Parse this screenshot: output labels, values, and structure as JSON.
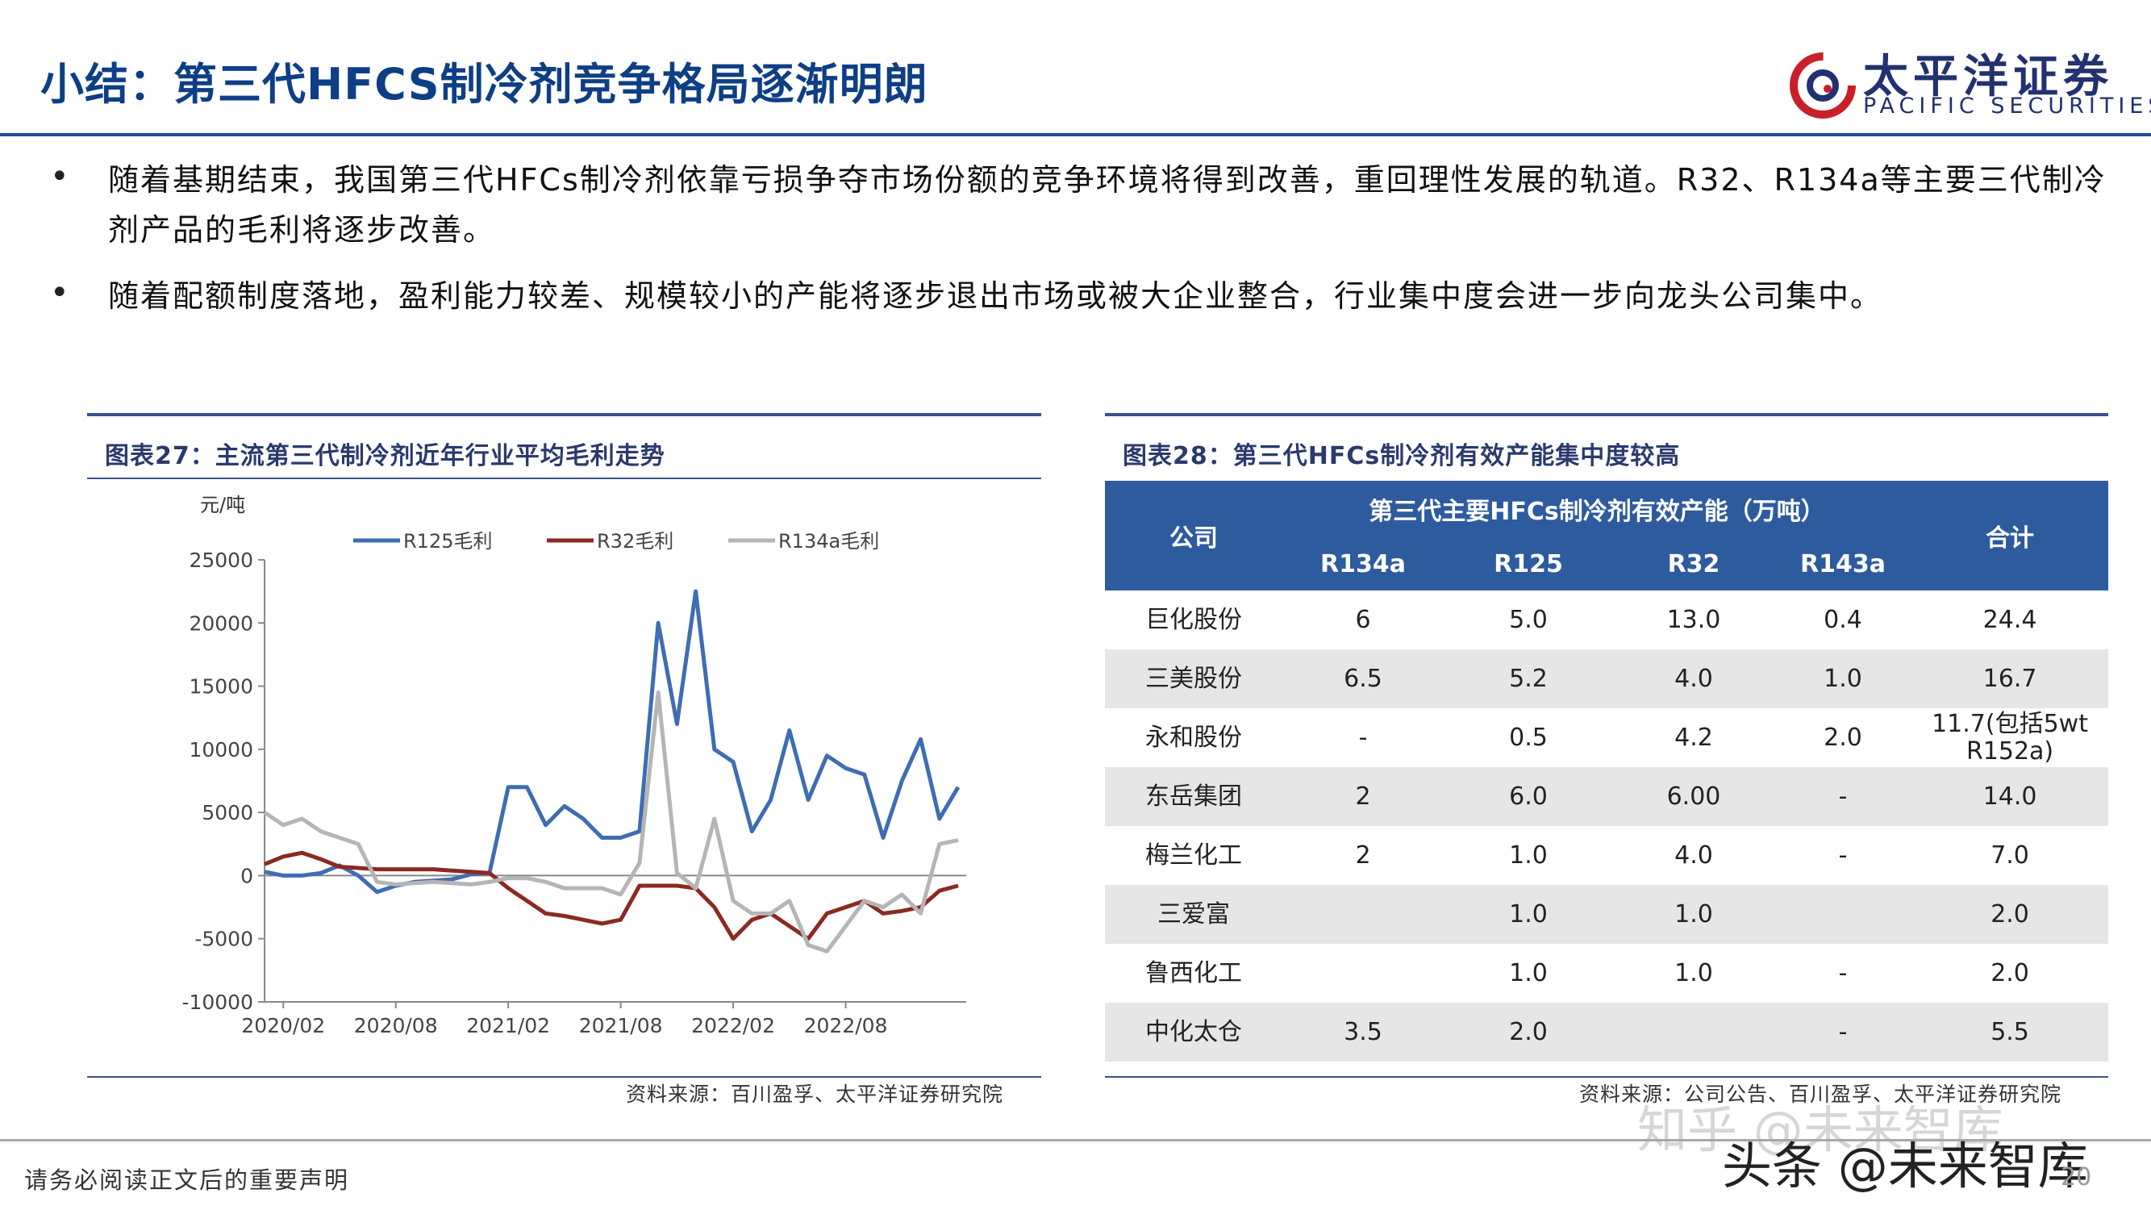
{
  "header": {
    "title": "小结：第三代HFCS制冷剂竞争格局逐渐明朗",
    "logo_name": "太平洋证券",
    "logo_en": "PACIFIC SECURITIES"
  },
  "bullets": [
    "随着基期结束，我国第三代HFCs制冷剂依靠亏损争夺市场份额的竞争环境将得到改善，重回理性发展的轨道。R32、R134a等主要三代制冷剂产品的毛利将逐步改善。",
    "随着配额制度落地，盈利能力较差、规模较小的产能将逐步退出市场或被大企业整合，行业集中度会进一步向龙头公司集中。"
  ],
  "bullet_mark": "•",
  "left_panel": {
    "title": "图表27：主流第三代制冷剂近年行业平均毛利走势",
    "source": "资料来源：百川盈孚、太平洋证券研究院"
  },
  "chart_data": {
    "type": "line",
    "ylabel": "元/吨",
    "ylim": [
      -10000,
      25000
    ],
    "yticks": [
      25000,
      20000,
      15000,
      10000,
      5000,
      0,
      -5000,
      -10000
    ],
    "xlim": [
      "2020-01",
      "2023-02"
    ],
    "xticks": [
      "2020/02",
      "2020/08",
      "2021/02",
      "2021/08",
      "2022/02",
      "2022/08"
    ],
    "legend_position": "top",
    "series": [
      {
        "name": "R125毛利",
        "color": "#3f6db3",
        "points": [
          [
            "2020-01",
            300
          ],
          [
            "2020-02",
            0
          ],
          [
            "2020-03",
            0
          ],
          [
            "2020-04",
            200
          ],
          [
            "2020-05",
            800
          ],
          [
            "2020-06",
            0
          ],
          [
            "2020-07",
            -1300
          ],
          [
            "2020-08",
            -800
          ],
          [
            "2020-09",
            -500
          ],
          [
            "2020-10",
            -400
          ],
          [
            "2020-11",
            -300
          ],
          [
            "2020-12",
            100
          ],
          [
            "2021-01",
            200
          ],
          [
            "2021-02",
            7000
          ],
          [
            "2021-03",
            7000
          ],
          [
            "2021-04",
            4000
          ],
          [
            "2021-05",
            5500
          ],
          [
            "2021-06",
            4500
          ],
          [
            "2021-07",
            3000
          ],
          [
            "2021-08",
            3000
          ],
          [
            "2021-09",
            3500
          ],
          [
            "2021-10",
            20000
          ],
          [
            "2021-11",
            12000
          ],
          [
            "2021-12",
            22500
          ],
          [
            "2022-01",
            10000
          ],
          [
            "2022-02",
            9000
          ],
          [
            "2022-03",
            3500
          ],
          [
            "2022-04",
            6000
          ],
          [
            "2022-05",
            11500
          ],
          [
            "2022-06",
            6000
          ],
          [
            "2022-07",
            9500
          ],
          [
            "2022-08",
            8500
          ],
          [
            "2022-09",
            8000
          ],
          [
            "2022-10",
            3000
          ],
          [
            "2022-11",
            7500
          ],
          [
            "2022-12",
            10800
          ],
          [
            "2023-01",
            4500
          ],
          [
            "2023-02",
            7000
          ]
        ]
      },
      {
        "name": "R32毛利",
        "color": "#8b2a22",
        "points": [
          [
            "2020-01",
            900
          ],
          [
            "2020-02",
            1500
          ],
          [
            "2020-03",
            1800
          ],
          [
            "2020-04",
            1300
          ],
          [
            "2020-05",
            700
          ],
          [
            "2020-06",
            600
          ],
          [
            "2020-07",
            500
          ],
          [
            "2020-08",
            500
          ],
          [
            "2020-09",
            500
          ],
          [
            "2020-10",
            500
          ],
          [
            "2020-11",
            400
          ],
          [
            "2020-12",
            300
          ],
          [
            "2021-01",
            200
          ],
          [
            "2021-02",
            -1000
          ],
          [
            "2021-03",
            -2000
          ],
          [
            "2021-04",
            -3000
          ],
          [
            "2021-05",
            -3200
          ],
          [
            "2021-06",
            -3500
          ],
          [
            "2021-07",
            -3800
          ],
          [
            "2021-08",
            -3500
          ],
          [
            "2021-09",
            -800
          ],
          [
            "2021-10",
            -800
          ],
          [
            "2021-11",
            -800
          ],
          [
            "2021-12",
            -1000
          ],
          [
            "2022-01",
            -2500
          ],
          [
            "2022-02",
            -5000
          ],
          [
            "2022-03",
            -3500
          ],
          [
            "2022-04",
            -3000
          ],
          [
            "2022-05",
            -4000
          ],
          [
            "2022-06",
            -5000
          ],
          [
            "2022-07",
            -3000
          ],
          [
            "2022-08",
            -2500
          ],
          [
            "2022-09",
            -2000
          ],
          [
            "2022-10",
            -3000
          ],
          [
            "2022-11",
            -2800
          ],
          [
            "2022-12",
            -2500
          ],
          [
            "2023-01",
            -1200
          ],
          [
            "2023-02",
            -800
          ]
        ]
      },
      {
        "name": "R134a毛利",
        "color": "#b5b5b5",
        "points": [
          [
            "2020-01",
            5000
          ],
          [
            "2020-02",
            4000
          ],
          [
            "2020-03",
            4500
          ],
          [
            "2020-04",
            3500
          ],
          [
            "2020-05",
            3000
          ],
          [
            "2020-06",
            2500
          ],
          [
            "2020-07",
            -500
          ],
          [
            "2020-08",
            -700
          ],
          [
            "2020-09",
            -600
          ],
          [
            "2020-10",
            -500
          ],
          [
            "2020-11",
            -600
          ],
          [
            "2020-12",
            -700
          ],
          [
            "2021-01",
            -500
          ],
          [
            "2021-02",
            -200
          ],
          [
            "2021-03",
            -200
          ],
          [
            "2021-04",
            -500
          ],
          [
            "2021-05",
            -1000
          ],
          [
            "2021-06",
            -1000
          ],
          [
            "2021-07",
            -1000
          ],
          [
            "2021-08",
            -1500
          ],
          [
            "2021-09",
            1000
          ],
          [
            "2021-10",
            14500
          ],
          [
            "2021-11",
            200
          ],
          [
            "2021-12",
            -1000
          ],
          [
            "2022-01",
            4500
          ],
          [
            "2022-02",
            -2000
          ],
          [
            "2022-03",
            -3000
          ],
          [
            "2022-04",
            -3000
          ],
          [
            "2022-05",
            -2000
          ],
          [
            "2022-06",
            -5500
          ],
          [
            "2022-07",
            -6000
          ],
          [
            "2022-08",
            -4000
          ],
          [
            "2022-09",
            -2000
          ],
          [
            "2022-10",
            -2500
          ],
          [
            "2022-11",
            -1500
          ],
          [
            "2022-12",
            -3000
          ],
          [
            "2023-01",
            2500
          ],
          [
            "2023-02",
            2800
          ]
        ]
      }
    ]
  },
  "right_panel": {
    "title": "图表28：第三代HFCs制冷剂有效产能集中度较高",
    "source": "资料来源：公司公告、百川盈孚、太平洋证券研究院"
  },
  "table": {
    "header_company": "公司",
    "header_group": "第三代主要HFCs制冷剂有效产能（万吨）",
    "header_total": "合计",
    "sub_headers": [
      "R134a",
      "R125",
      "R32",
      "R143a"
    ],
    "rows": [
      [
        "巨化股份",
        "6",
        "5.0",
        "13.0",
        "0.4",
        "24.4"
      ],
      [
        "三美股份",
        "6.5",
        "5.2",
        "4.0",
        "1.0",
        "16.7"
      ],
      [
        "永和股份",
        "-",
        "0.5",
        "4.2",
        "2.0",
        "11.7(包括5wt R152a)"
      ],
      [
        "东岳集团",
        "2",
        "6.0",
        "6.00",
        "-",
        "14.0"
      ],
      [
        "梅兰化工",
        "2",
        "1.0",
        "4.0",
        "-",
        "7.0"
      ],
      [
        "三爱富",
        "",
        "1.0",
        "1.0",
        "",
        "2.0"
      ],
      [
        "鲁西化工",
        "",
        "1.0",
        "1.0",
        "-",
        "2.0"
      ],
      [
        "中化太仓",
        "3.5",
        "2.0",
        "",
        "-",
        "5.5"
      ]
    ]
  },
  "footer": {
    "disclaimer": "请务必阅读正文后的重要声明",
    "page_number": "20",
    "watermark_1": "知乎 @未来智库",
    "watermark_2": "头条 @未来智库"
  }
}
